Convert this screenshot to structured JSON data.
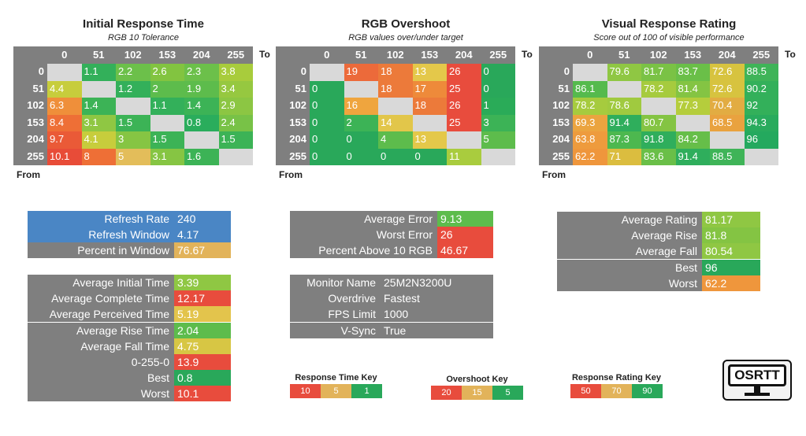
{
  "colors": {
    "grey": "#7f7f7f",
    "diag": "#d9d9d9",
    "blue": "#4a86c5"
  },
  "panels": [
    {
      "title": "Initial Response Time",
      "subtitle": "RGB 10 Tolerance",
      "to_label": "To",
      "from_label": "From",
      "cols": [
        "0",
        "51",
        "102",
        "153",
        "204",
        "255"
      ],
      "rows": [
        "0",
        "51",
        "102",
        "153",
        "204",
        "255"
      ],
      "cells": [
        [
          null,
          "1.1",
          "2.2",
          "2.6",
          "2.3",
          "3.8"
        ],
        [
          "4.4",
          null,
          "1.2",
          "2",
          "1.9",
          "3.4"
        ],
        [
          "6.3",
          "1.4",
          null,
          "1.1",
          "1.4",
          "2.9"
        ],
        [
          "8.4",
          "3.1",
          "1.5",
          null,
          "0.8",
          "2.4"
        ],
        [
          "9.7",
          "4.1",
          "3",
          "1.5",
          null,
          "1.5"
        ],
        [
          "10.1",
          "8",
          "5",
          "3.1",
          "1.6",
          null
        ]
      ],
      "colors": [
        [
          null,
          "#33b05a",
          "#6cc04a",
          "#82c440",
          "#6cc04a",
          "#a8cc3c"
        ],
        [
          "#c7cd3c",
          null,
          "#33b05a",
          "#5dbc4c",
          "#5dbc4c",
          "#96c840"
        ],
        [
          "#ef8f3a",
          "#3cb356",
          null,
          "#33b05a",
          "#3cb356",
          "#8cc643"
        ],
        [
          "#ee6f36",
          "#8fc743",
          "#3cb356",
          null,
          "#2aad5c",
          "#78c247"
        ],
        [
          "#ea5a37",
          "#c7cd3c",
          "#86c543",
          "#3cb356",
          null,
          "#3cb356"
        ],
        [
          "#e84c38",
          "#ee6f36",
          "#e3bd5a",
          "#86c543",
          "#3cb356",
          null
        ]
      ]
    },
    {
      "title": "RGB Overshoot",
      "subtitle": "RGB values over/under target",
      "to_label": "To",
      "from_label": "From",
      "cols": [
        "0",
        "51",
        "102",
        "153",
        "204",
        "255"
      ],
      "rows": [
        "0",
        "51",
        "102",
        "153",
        "204",
        "255"
      ],
      "cells": [
        [
          null,
          "19",
          "18",
          "13",
          "26",
          "0"
        ],
        [
          "0",
          null,
          "18",
          "17",
          "25",
          "0"
        ],
        [
          "0",
          "16",
          null,
          "18",
          "26",
          "1"
        ],
        [
          "0",
          "2",
          "14",
          null,
          "25",
          "3"
        ],
        [
          "0",
          "0",
          "4",
          "13",
          null,
          "5"
        ],
        [
          "0",
          "0",
          "0",
          "0",
          "11",
          null
        ]
      ],
      "colors": [
        [
          null,
          "#ec6a3a",
          "#ec7a3a",
          "#e4c84a",
          "#e84c3d",
          "#29a85a"
        ],
        [
          "#29a85a",
          null,
          "#ec7a3a",
          "#ee8a3a",
          "#e84c3d",
          "#29a85a"
        ],
        [
          "#29a85a",
          "#efa53e",
          null,
          "#ec7a3a",
          "#e84c3d",
          "#2aab58"
        ],
        [
          "#29a85a",
          "#3cb356",
          "#e2c64a",
          null,
          "#e84c3d",
          "#3cb356"
        ],
        [
          "#29a85a",
          "#29a85a",
          "#5dbc4c",
          "#e4c84a",
          null,
          "#5dbc4c"
        ],
        [
          "#29a85a",
          "#29a85a",
          "#29a85a",
          "#29a85a",
          "#a9cc3e",
          null
        ]
      ]
    },
    {
      "title": "Visual Response Rating",
      "subtitle": "Score out of 100 of visible performance",
      "to_label": "To",
      "from_label": "From",
      "cols": [
        "0",
        "51",
        "102",
        "153",
        "204",
        "255"
      ],
      "rows": [
        "0",
        "51",
        "102",
        "153",
        "204",
        "255"
      ],
      "cells": [
        [
          null,
          "79.6",
          "81.7",
          "83.7",
          "72.6",
          "88.5"
        ],
        [
          "86.1",
          null,
          "78.2",
          "81.4",
          "72.6",
          "90.2"
        ],
        [
          "78.2",
          "78.6",
          null,
          "77.3",
          "70.4",
          "92"
        ],
        [
          "69.3",
          "91.4",
          "80.7",
          null,
          "68.5",
          "94.3"
        ],
        [
          "63.8",
          "87.3",
          "91.8",
          "84.2",
          null,
          "96"
        ],
        [
          "62.2",
          "71",
          "83.6",
          "91.4",
          "88.5",
          null
        ]
      ],
      "colors": [
        [
          null,
          "#8fc743",
          "#7ac245",
          "#6abf48",
          "#d7c33f",
          "#3fb458"
        ],
        [
          "#55ba4d",
          null,
          "#a6cb3e",
          "#84c443",
          "#d7c33f",
          "#33b05a"
        ],
        [
          "#a6cb3e",
          "#a0ca3f",
          null,
          "#b5cd3c",
          "#e2ac42",
          null
        ],
        [
          "#eba43f",
          "#2fae5c",
          "#84c443",
          null,
          "#e9a23f",
          "#29ab5d"
        ],
        [
          "#ee9b3d",
          "#4db84f",
          "#2fae5c",
          "#66be49",
          null,
          "#24a95e"
        ],
        [
          "#ef963c",
          "#dbbd3f",
          "#6abf48",
          "#2fae5c",
          "#3fb458",
          null
        ]
      ]
    }
  ],
  "refresh_box": [
    {
      "label": "Refresh Rate",
      "value": "240",
      "color": "#4a86c5"
    },
    {
      "label": "Refresh Window",
      "value": "4.17",
      "color": "#4a86c5"
    },
    {
      "label": "Percent in Window",
      "value": "76.67",
      "color": "#e2b35a"
    }
  ],
  "times_box": [
    {
      "label": "Average Initial Time",
      "value": "3.39",
      "color": "#8fc743"
    },
    {
      "label": "Average Complete Time",
      "value": "12.17",
      "color": "#e84c3d"
    },
    {
      "label": "Average Perceived Time",
      "value": "5.19",
      "color": "#e3c44c"
    },
    {
      "label": "Average Rise Time",
      "value": "2.04",
      "color": "#5dbc4c"
    },
    {
      "label": "Average Fall Time",
      "value": "4.75",
      "color": "#d7c644"
    },
    {
      "label": "0-255-0",
      "value": "13.9",
      "color": "#e84c3d"
    },
    {
      "label": "Best",
      "value": "0.8",
      "color": "#29a85a"
    },
    {
      "label": "Worst",
      "value": "10.1",
      "color": "#e84c3d"
    }
  ],
  "error_box": [
    {
      "label": "Average Error",
      "value": "9.13",
      "color": "#5dbc4c"
    },
    {
      "label": "Worst Error",
      "value": "26",
      "color": "#e84c3d"
    },
    {
      "label": "Percent Above 10 RGB",
      "value": "46.67",
      "color": "#e84c3d"
    }
  ],
  "monitor_box": [
    {
      "label": "Monitor Name",
      "value": "25M2N3200U"
    },
    {
      "label": "Overdrive",
      "value": "Fastest"
    },
    {
      "label": "FPS Limit",
      "value": "1000"
    },
    {
      "label": "V-Sync",
      "value": "True"
    }
  ],
  "rating_box": [
    {
      "label": "Average Rating",
      "value": "81.17",
      "color": "#8fc743"
    },
    {
      "label": "Average Rise",
      "value": "81.8",
      "color": "#84c443"
    },
    {
      "label": "Average Fall",
      "value": "80.54",
      "color": "#8fc743"
    },
    {
      "label": "Best",
      "value": "96",
      "color": "#29a85a"
    },
    {
      "label": "Worst",
      "value": "62.2",
      "color": "#ef963c"
    }
  ],
  "keys": [
    {
      "title": "Response Time Key",
      "items": [
        {
          "label": "10",
          "color": "#e84c3d"
        },
        {
          "label": "5",
          "color": "#e2b35a"
        },
        {
          "label": "1",
          "color": "#29a85a"
        }
      ]
    },
    {
      "title": "Overshoot Key",
      "items": [
        {
          "label": "20",
          "color": "#e84c3d"
        },
        {
          "label": "15",
          "color": "#e2b35a"
        },
        {
          "label": "5",
          "color": "#29a85a"
        }
      ]
    },
    {
      "title": "Response Rating Key",
      "items": [
        {
          "label": "50",
          "color": "#e84c3d"
        },
        {
          "label": "70",
          "color": "#e2b35a"
        },
        {
          "label": "90",
          "color": "#29a85a"
        }
      ]
    }
  ],
  "logo_text": "OSRTT"
}
